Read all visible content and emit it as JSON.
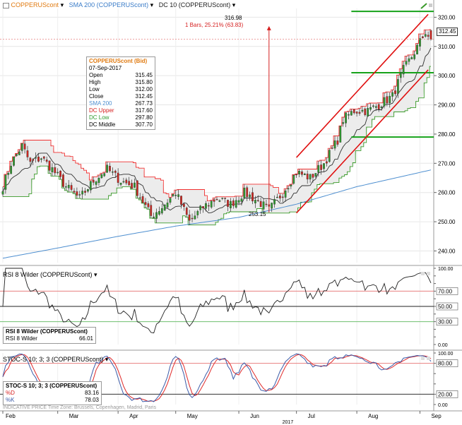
{
  "colors": {
    "price_up": "#2e9a2e",
    "price_down": "#d0251f",
    "sma": "#4e8fd0",
    "dc_upper": "#f03030",
    "dc_lower": "#3a9a2a",
    "dc_middle": "#303030",
    "dc_fill": "#ececec",
    "channel": "#e01010",
    "hline": "#16a21a",
    "rsi": "#202020",
    "stoch_d": "#e02a2a",
    "stoch_k": "#3a5aa8",
    "ref_red": "#e88080"
  },
  "header": {
    "symbol_label": "COPPERUScont",
    "sma_label": "SMA 200 (COPPERUScont)",
    "dc_label": "DC 10 (COPPERUScont)",
    "last_price": "312.45"
  },
  "annotations": {
    "peak_value": "316.98",
    "bars_label": "1 Bars, 25.21% (63.83)",
    "low_value": "253.15"
  },
  "infobox": {
    "title": "COPPERUScont (Bid)",
    "date": "07-Sep-2017",
    "rows": [
      {
        "label": "Open",
        "value": "315.45"
      },
      {
        "label": "High",
        "value": "315.80"
      },
      {
        "label": "Low",
        "value": "312.00"
      },
      {
        "label": "Close",
        "value": "312.45"
      },
      {
        "label": "SMA 200",
        "value": "267.73"
      },
      {
        "label": "DC Upper",
        "value": "317.60"
      },
      {
        "label": "DC Low",
        "value": "297.80"
      },
      {
        "label": "DC Middle",
        "value": "307.70"
      }
    ]
  },
  "rsi_panel": {
    "header": "RSI 8 Wilder (COPPERUScont)",
    "box_title": "RSI 8 Wilder (COPPERUScont)",
    "box_label": "RSI 8 Wilder",
    "box_value": "66.01"
  },
  "stoch_panel": {
    "header": "STOC-S 10; 3; 3 (COPPERUScont)",
    "box_title": "STOC-S 10; 3; 3 (COPPERUScont)",
    "d_label": "%D",
    "d_value": "83.16",
    "k_label": "%K",
    "k_value": "78.03"
  },
  "footer": {
    "note": "INDICATIVE PRICE  Time Zone: Brussels, Copenhagen, Madrid, Paris",
    "months": [
      "Feb",
      "Mar",
      "Apr",
      "May",
      "Jun",
      "Jul",
      "Aug",
      "Sep"
    ],
    "year": "2017"
  },
  "chart_data": [
    {
      "type": "candlestick",
      "title": "",
      "x_range": [
        "2017-02-01",
        "2017-09-07"
      ],
      "ylim": [
        236,
        323
      ],
      "yticks": [
        240,
        250,
        260,
        270,
        280,
        290,
        300,
        310,
        320
      ],
      "grid": true,
      "series_names": [
        "COPPERUScont",
        "SMA 200 (COPPERUScont)",
        "DC 10 (COPPERUScont)"
      ],
      "anchors_close": [
        {
          "date": "2017-02-01",
          "close": 262
        },
        {
          "date": "2017-02-06",
          "close": 270
        },
        {
          "date": "2017-02-10",
          "close": 276
        },
        {
          "date": "2017-02-15",
          "close": 270
        },
        {
          "date": "2017-02-21",
          "close": 272
        },
        {
          "date": "2017-02-27",
          "close": 268
        },
        {
          "date": "2017-03-06",
          "close": 262
        },
        {
          "date": "2017-03-13",
          "close": 258
        },
        {
          "date": "2017-03-20",
          "close": 264
        },
        {
          "date": "2017-03-27",
          "close": 268
        },
        {
          "date": "2017-04-03",
          "close": 264
        },
        {
          "date": "2017-04-10",
          "close": 262
        },
        {
          "date": "2017-04-18",
          "close": 252
        },
        {
          "date": "2017-04-24",
          "close": 255
        },
        {
          "date": "2017-05-01",
          "close": 260
        },
        {
          "date": "2017-05-08",
          "close": 250
        },
        {
          "date": "2017-05-15",
          "close": 255
        },
        {
          "date": "2017-05-22",
          "close": 258
        },
        {
          "date": "2017-05-29",
          "close": 256
        },
        {
          "date": "2017-06-05",
          "close": 260
        },
        {
          "date": "2017-06-12",
          "close": 257
        },
        {
          "date": "2017-06-16",
          "close": 254
        },
        {
          "date": "2017-06-23",
          "close": 260
        },
        {
          "date": "2017-06-30",
          "close": 267
        },
        {
          "date": "2017-07-07",
          "close": 265
        },
        {
          "date": "2017-07-14",
          "close": 270
        },
        {
          "date": "2017-07-21",
          "close": 278
        },
        {
          "date": "2017-07-25",
          "close": 285
        },
        {
          "date": "2017-07-31",
          "close": 288
        },
        {
          "date": "2017-08-07",
          "close": 288
        },
        {
          "date": "2017-08-11",
          "close": 290
        },
        {
          "date": "2017-08-18",
          "close": 293
        },
        {
          "date": "2017-08-24",
          "close": 302
        },
        {
          "date": "2017-08-30",
          "close": 308
        },
        {
          "date": "2017-09-05",
          "close": 315
        },
        {
          "date": "2017-09-07",
          "close": 312.45
        }
      ],
      "sma_200": [
        {
          "date": "2017-02-01",
          "value": 237.5
        },
        {
          "date": "2017-03-01",
          "value": 241
        },
        {
          "date": "2017-04-01",
          "value": 245
        },
        {
          "date": "2017-05-01",
          "value": 248.5
        },
        {
          "date": "2017-06-01",
          "value": 251.5
        },
        {
          "date": "2017-07-01",
          "value": 256
        },
        {
          "date": "2017-08-01",
          "value": 262
        },
        {
          "date": "2017-09-07",
          "value": 267.73
        }
      ],
      "donchian_period": 10,
      "horizontal_lines": [
        322,
        301,
        279
      ],
      "channel": {
        "upper": [
          {
            "date": "2017-06-30",
            "value": 272
          },
          {
            "date": "2017-09-06",
            "value": 321
          }
        ],
        "lower": [
          {
            "date": "2017-06-30",
            "value": 253
          },
          {
            "date": "2017-09-06",
            "value": 302
          }
        ]
      },
      "measure": {
        "from_date": "2017-06-16",
        "from": 253.15,
        "to": 316.98
      },
      "last_price": 312.45
    },
    {
      "type": "line",
      "title": "",
      "series_names": [
        "RSI 8 Wilder (COPPERUScont)"
      ],
      "ylim": [
        0,
        100
      ],
      "yticks": [
        0,
        10,
        20,
        30,
        40,
        50,
        60,
        70,
        80,
        90,
        100
      ],
      "tick_labels": [
        "0.00",
        "10",
        "20",
        "30.00",
        "40",
        "50.00",
        "60",
        "70.00",
        "80",
        "90",
        "100.00"
      ],
      "reference_lines": [
        70,
        50,
        30
      ],
      "last_value": 66.01
    },
    {
      "type": "line",
      "title": "",
      "series_names": [
        "%D",
        "%K"
      ],
      "ylim": [
        0,
        100
      ],
      "yticks": [
        0,
        20,
        40,
        60,
        80,
        100
      ],
      "tick_labels": [
        "0.00",
        "20.00",
        "40",
        "60",
        "80.00",
        "100.00"
      ],
      "reference_lines": [
        80,
        20
      ],
      "last_values": {
        "%D": 83.16,
        "%K": 78.03
      }
    }
  ]
}
